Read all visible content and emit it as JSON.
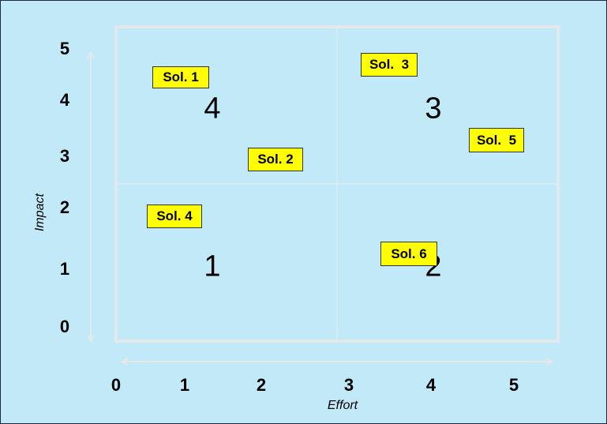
{
  "y_axis": {
    "title": "Impact",
    "ticks": [
      "5",
      "4",
      "3",
      "2",
      "1",
      "0"
    ]
  },
  "x_axis": {
    "title": "Effort",
    "ticks": [
      "0",
      "1",
      "2",
      "3",
      "4",
      "5"
    ]
  },
  "quadrants": [
    "4",
    "3",
    "1",
    "2"
  ],
  "solutions": [
    "Sol. 1",
    "Sol.  3",
    "Sol. 2",
    "Sol.  5",
    "Sol. 4",
    "Sol. 6"
  ]
}
